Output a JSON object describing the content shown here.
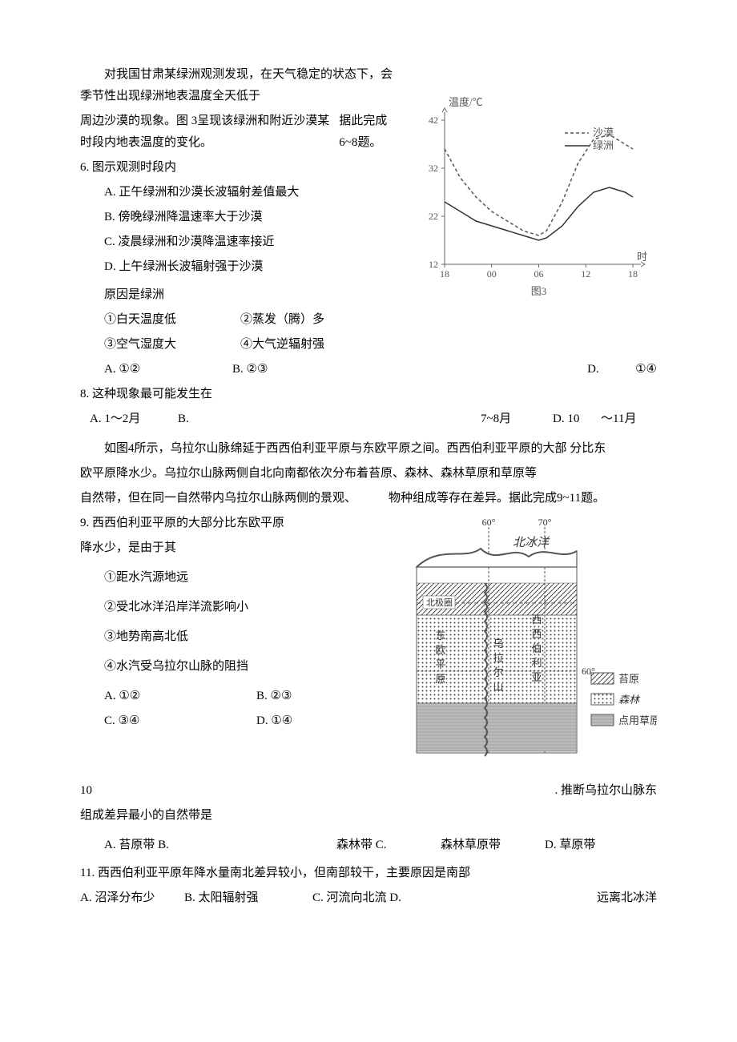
{
  "passage1": {
    "p1": "对我国甘肃某绿洲观测发现，在天气稳定的状态下，会季节性出现绿洲地表温度全天低于",
    "p2_left": "周边沙漠的现象。图 3呈现该绿洲和附近沙漠某时段内地表温度的变化。",
    "p2_right": "据此完成6~8题。"
  },
  "q6": {
    "stem": "6. 图示观测时段内",
    "A": "A. 正午绿洲和沙漠长波辐射差值最大",
    "B": "B. 傍晚绿洲降温速率大于沙漠",
    "C": "C. 凌晨绿洲和沙漠降温速率接近",
    "D": "D. 上午绿洲长波辐射强于沙漠"
  },
  "q7": {
    "stem": "原因是绿洲",
    "i1": "①白天温度低",
    "i2": "②蒸发（腾）多",
    "i3": "③空气湿度大",
    "i4": "④大气逆辐射强",
    "A": "A. ①②",
    "B": "B. ②③",
    "D_lab": "D.",
    "D_val": "①④"
  },
  "q8": {
    "stem": "8. 这种现象最可能发生在",
    "A": "A. 1～2月",
    "B": "B.",
    "C": "7~8月",
    "D_lab": "D. 10",
    "D_val": "～11月"
  },
  "passage2": {
    "p1": "如图4所示，乌拉尔山脉绵延于西西伯利亚平原与东欧平原之间。西西伯利亚平原的大部 分比东",
    "p2": "欧平原降水少。乌拉尔山脉两侧自北向南都依次分布着苔原、森林、森林草原和草原等",
    "p3_left": "自然带，但在同一自然带内乌拉尔山脉两侧的景观、",
    "p3_right": "物种组成等存在差异。据此完成9~11题。"
  },
  "q9": {
    "stem": "9. 西西伯利亚平原的大部分比东欧平原",
    "stem2": "降水少，是由于其",
    "i1": "①距水汽源地远",
    "i2": "②受北冰洋沿岸洋流影响小",
    "i3": "③地势南高北低",
    "i4": "④水汽受乌拉尔山脉的阻挡",
    "A": "A. ①②",
    "B": "B. ②③",
    "C": "C. ③④",
    "D": "D. ①④"
  },
  "q10": {
    "num": "10",
    "right": ". 推断乌拉尔山脉东",
    "line2": "组成差异最小的自然带是",
    "A": "A. 苔原带 B.",
    "B": "森林带 C.",
    "C": "森林草原带",
    "D": "D.  草原带"
  },
  "q11": {
    "stem": "11. 西西伯利亚平原年降水量南北差异较小，但南部较干，主要原因是南部",
    "A": "A. 沼泽分布少",
    "B": "B. 太阳辐射强",
    "C": "C. 河流向北流 D.",
    "D": "远离北冰洋"
  },
  "chart3": {
    "title_y": "温度/℃",
    "label_sand": "沙漠",
    "label_oasis": "绿洲",
    "label_x": "时",
    "caption": "图3",
    "yticks": [
      "42",
      "32",
      "22",
      "12"
    ],
    "xticks": [
      "18",
      "00",
      "06",
      "12",
      "18"
    ],
    "colors": {
      "axis": "#666666",
      "grid": "#999999",
      "sand": "#555555",
      "oasis": "#333333",
      "text": "#555555"
    },
    "ylim": [
      12,
      42
    ],
    "xvals": [
      18,
      24,
      30,
      36,
      42
    ],
    "sand_pts": [
      [
        18,
        36
      ],
      [
        20,
        30
      ],
      [
        22,
        26
      ],
      [
        24,
        23
      ],
      [
        26,
        21
      ],
      [
        28,
        19
      ],
      [
        30,
        18
      ],
      [
        31,
        19
      ],
      [
        33,
        25
      ],
      [
        35,
        33
      ],
      [
        37,
        38
      ],
      [
        39,
        39
      ],
      [
        41,
        37
      ],
      [
        42,
        36
      ]
    ],
    "oasis_pts": [
      [
        18,
        25
      ],
      [
        20,
        23
      ],
      [
        22,
        21
      ],
      [
        24,
        20
      ],
      [
        26,
        19
      ],
      [
        28,
        18
      ],
      [
        30,
        17
      ],
      [
        31,
        17.5
      ],
      [
        33,
        20
      ],
      [
        35,
        24
      ],
      [
        37,
        27
      ],
      [
        39,
        28
      ],
      [
        41,
        27
      ],
      [
        42,
        26
      ]
    ]
  },
  "map4": {
    "lon_labels": [
      "60°",
      "70°"
    ],
    "lat_label": "60°",
    "ocean": "北冰洋",
    "arctic": "北极圈",
    "left_labels": [
      "东",
      "欧",
      "平",
      "原"
    ],
    "mid_labels": [
      "乌",
      "拉",
      "尔",
      "山"
    ],
    "right_labels": [
      "西",
      "西",
      "伯",
      "利",
      "亚"
    ],
    "legend": {
      "tundra": "苔原",
      "forest": "森林",
      "grass": "点用草原和草原"
    },
    "colors": {
      "border": "#555555",
      "water": "#ffffff",
      "hatch": "#444444",
      "text": "#333333"
    }
  }
}
